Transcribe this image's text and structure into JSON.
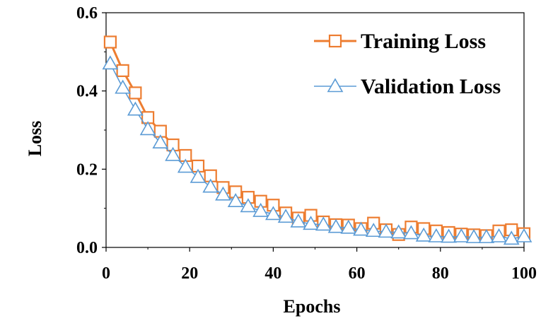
{
  "chart_data": {
    "type": "line",
    "xlabel": "Epochs",
    "ylabel": "Loss",
    "xlim": [
      0,
      100
    ],
    "ylim": [
      0,
      0.6
    ],
    "x_ticks": [
      0,
      20,
      40,
      60,
      80,
      100
    ],
    "y_ticks": [
      "0.0",
      "0.2",
      "0.4",
      "0.6"
    ],
    "grid": false,
    "legend_position": "top-right",
    "x": [
      1,
      4,
      7,
      10,
      13,
      16,
      19,
      22,
      25,
      28,
      31,
      34,
      37,
      40,
      43,
      46,
      49,
      52,
      55,
      58,
      61,
      64,
      67,
      70,
      73,
      76,
      79,
      82,
      85,
      88,
      91,
      94,
      97,
      100
    ],
    "series": [
      {
        "name": "Training Loss",
        "color": "#ED7D31",
        "marker": "square",
        "values": [
          0.525,
          0.452,
          0.395,
          0.332,
          0.297,
          0.262,
          0.235,
          0.208,
          0.183,
          0.153,
          0.142,
          0.128,
          0.118,
          0.108,
          0.088,
          0.075,
          0.082,
          0.065,
          0.058,
          0.057,
          0.048,
          0.062,
          0.045,
          0.033,
          0.052,
          0.048,
          0.042,
          0.038,
          0.034,
          0.032,
          0.03,
          0.042,
          0.045,
          0.035
        ]
      },
      {
        "name": "Validation Loss",
        "color": "#5B9BD5",
        "marker": "triangle",
        "values": [
          0.47,
          0.408,
          0.352,
          0.302,
          0.268,
          0.236,
          0.206,
          0.18,
          0.155,
          0.135,
          0.118,
          0.105,
          0.093,
          0.085,
          0.078,
          0.066,
          0.06,
          0.058,
          0.052,
          0.05,
          0.045,
          0.042,
          0.04,
          0.038,
          0.036,
          0.03,
          0.028,
          0.027,
          0.028,
          0.026,
          0.026,
          0.028,
          0.022,
          0.028
        ]
      }
    ]
  }
}
